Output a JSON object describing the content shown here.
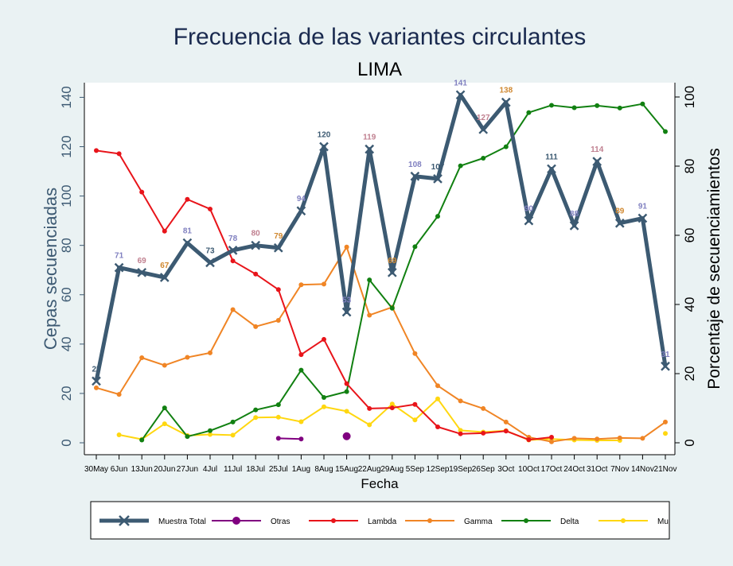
{
  "chart_data": {
    "type": "line",
    "title": "Frecuencia de las variantes circulantes",
    "subtitle": "LIMA",
    "xlabel": "Fecha",
    "ylabel_left": "Cepas secuenciadas",
    "ylabel_right": "Porcentaje de secuenciamientos",
    "ylim_left": [
      0,
      140
    ],
    "ylim_right": [
      0,
      100
    ],
    "yticks_left": [
      0,
      20,
      40,
      60,
      80,
      100,
      120,
      140
    ],
    "yticks_right": [
      0,
      20,
      40,
      60,
      80,
      100
    ],
    "categories": [
      "30May",
      "6Jun",
      "13Jun",
      "20Jun",
      "27Jun",
      "4Jul",
      "11Jul",
      "18Jul",
      "25Jul",
      "1Aug",
      "8Aug",
      "15Aug",
      "22Aug",
      "29Aug",
      "5Sep",
      "12Sep",
      "19Sep",
      "26Sep",
      "3Oct",
      "10Oct",
      "17Oct",
      "24Oct",
      "31Oct",
      "7Nov",
      "14Nov",
      "21Nov"
    ],
    "series": [
      {
        "name": "Muestra Total",
        "axis": "left",
        "color": "#3c5a72",
        "values": [
          25,
          71,
          69,
          67,
          81,
          73,
          78,
          80,
          79,
          94,
          120,
          53,
          119,
          69,
          108,
          107,
          141,
          127,
          138,
          90,
          111,
          88,
          114,
          89,
          91,
          31
        ],
        "labels": [
          "25",
          "71",
          "69",
          "67",
          "81",
          "73",
          "78",
          "80",
          "79",
          "94",
          "120",
          "53",
          "119",
          "69",
          "108",
          "107",
          "141",
          "127",
          "138",
          "90",
          "111",
          "88",
          "114",
          "89",
          "91",
          "31"
        ],
        "label_colors": [
          "#3c5a72",
          "#8080c0",
          "#c08090",
          "#d08830",
          "#8080c0",
          "#3c5a72",
          "#8080c0",
          "#c08090",
          "#d08830",
          "#8080c0",
          "#3c5a72",
          "#8080c0",
          "#c08090",
          "#d08830",
          "#8080c0",
          "#3c5a72",
          "#8080c0",
          "#c08090",
          "#d08830",
          "#8080c0",
          "#3c5a72",
          "#8080c0",
          "#c08090",
          "#d08830",
          "#8080c0",
          "#8080c0"
        ]
      },
      {
        "name": "Otras",
        "axis": "right",
        "color": "#800080",
        "values": [
          null,
          null,
          null,
          null,
          null,
          null,
          null,
          null,
          1.3,
          1.1,
          null,
          1.9,
          null,
          null,
          null,
          null,
          null,
          null,
          null,
          null,
          null,
          null,
          null,
          null,
          null,
          null
        ]
      },
      {
        "name": "Lambda",
        "axis": "right",
        "color": "#e8141a",
        "values": [
          84.5,
          83.6,
          72.5,
          61.2,
          70.4,
          67.6,
          52.6,
          48.8,
          44.3,
          25.5,
          29.9,
          17.1,
          9.9,
          10.1,
          11.1,
          4.6,
          2.6,
          2.8,
          3.4,
          0.9,
          1.6,
          null,
          null,
          null,
          null,
          null
        ]
      },
      {
        "name": "Gamma",
        "axis": "right",
        "color": "#f08525",
        "values": [
          15.9,
          14.0,
          24.6,
          22.4,
          24.7,
          26.0,
          38.5,
          33.6,
          35.4,
          45.7,
          45.9,
          56.6,
          36.9,
          39.2,
          25.8,
          16.5,
          12.1,
          9.9,
          6.0,
          1.6,
          0.3,
          1.3,
          1.1,
          1.4,
          1.3,
          6.0
        ]
      },
      {
        "name": "Delta",
        "axis": "right",
        "color": "#118011",
        "values": [
          null,
          null,
          0.8,
          10.1,
          1.8,
          3.5,
          6.0,
          9.5,
          11.0,
          21.0,
          13.1,
          14.8,
          47.1,
          38.9,
          56.7,
          65.5,
          80.1,
          82.3,
          85.6,
          95.5,
          97.6,
          96.9,
          97.5,
          96.8,
          98.0,
          90.0
        ]
      },
      {
        "name": "Mu",
        "axis": "right",
        "color": "#ffd710",
        "values": [
          null,
          2.3,
          1.0,
          5.5,
          2.1,
          2.4,
          2.2,
          7.3,
          7.4,
          6.1,
          10.4,
          9.1,
          5.2,
          11.2,
          6.6,
          12.7,
          3.6,
          3.1,
          3.5,
          0.8,
          1.1,
          0.8,
          0.7,
          0.7,
          null,
          2.7
        ]
      }
    ],
    "legend": {
      "position": "bottom",
      "items": [
        "Muestra Total",
        "Otras",
        "Lambda",
        "Gamma",
        "Delta",
        "Mu"
      ]
    }
  }
}
